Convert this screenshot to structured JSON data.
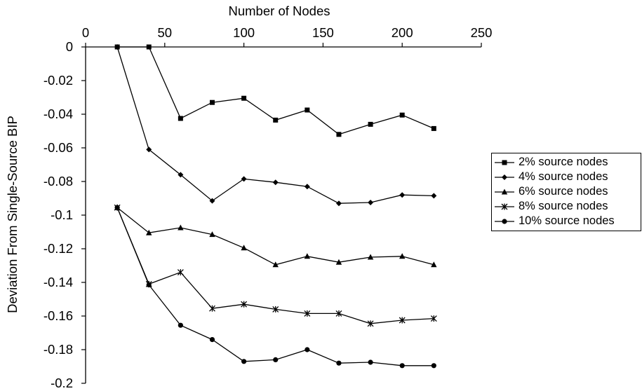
{
  "chart_data": {
    "type": "line",
    "title": "",
    "xlabel": "Number of Nodes",
    "ylabel": "Deviation From Single-Source BIP",
    "xlim": [
      0,
      250
    ],
    "ylim": [
      -0.2,
      0
    ],
    "x_ticks": [
      "0",
      "50",
      "100",
      "150",
      "200",
      "250"
    ],
    "y_ticks": [
      "0",
      "-0.02",
      "-0.04",
      "-0.06",
      "-0.08",
      "-0.1",
      "-0.12",
      "-0.14",
      "-0.16",
      "-0.18",
      "-0.2"
    ],
    "x_axis_position": "top",
    "grid": false,
    "legend_position": "right",
    "series": [
      {
        "name": "2% source nodes",
        "marker": "square",
        "x": [
          20,
          40,
          60,
          80,
          100,
          120,
          140,
          160,
          180,
          200,
          220
        ],
        "y": [
          0,
          0,
          -0.0425,
          -0.033,
          -0.0305,
          -0.0435,
          -0.0375,
          -0.052,
          -0.046,
          -0.0405,
          -0.0485
        ]
      },
      {
        "name": "4% source nodes",
        "marker": "diamond",
        "x": [
          20,
          40,
          60,
          80,
          100,
          120,
          140,
          160,
          180,
          200,
          220
        ],
        "y": [
          0,
          -0.061,
          -0.076,
          -0.0915,
          -0.0785,
          -0.0805,
          -0.083,
          -0.093,
          -0.0925,
          -0.088,
          -0.0885
        ]
      },
      {
        "name": "6% source nodes",
        "marker": "triangle",
        "x": [
          20,
          40,
          60,
          80,
          100,
          120,
          140,
          160,
          180,
          200,
          220
        ],
        "y": [
          -0.0955,
          -0.1105,
          -0.1075,
          -0.1115,
          -0.1195,
          -0.1295,
          -0.1245,
          -0.128,
          -0.125,
          -0.1245,
          -0.1295
        ]
      },
      {
        "name": "8% source nodes",
        "marker": "star",
        "x": [
          20,
          40,
          60,
          80,
          100,
          120,
          140,
          160,
          180,
          200,
          220
        ],
        "y": [
          -0.0955,
          -0.141,
          -0.134,
          -0.1555,
          -0.153,
          -0.156,
          -0.1585,
          -0.1585,
          -0.1645,
          -0.1625,
          -0.1615
        ]
      },
      {
        "name": "10% source nodes",
        "marker": "circle",
        "x": [
          20,
          40,
          60,
          80,
          100,
          120,
          140,
          160,
          180,
          200,
          220
        ],
        "y": [
          -0.0955,
          -0.1415,
          -0.1655,
          -0.174,
          -0.187,
          -0.186,
          -0.18,
          -0.188,
          -0.1875,
          -0.1895,
          -0.1895
        ]
      }
    ]
  }
}
